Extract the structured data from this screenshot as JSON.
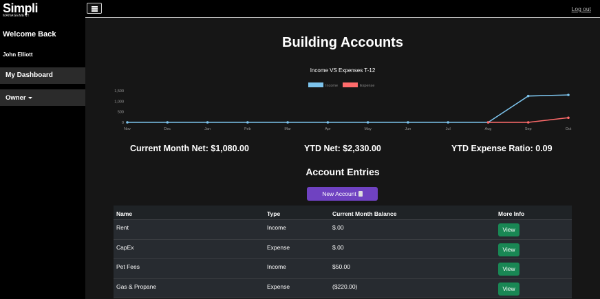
{
  "app": {
    "logo_text": "Simpli",
    "logo_sub": "MANAGEMENT"
  },
  "sidebar": {
    "welcome": "Welcome Back",
    "user_name": "John Elliott",
    "items": [
      {
        "label": "My Dashboard"
      },
      {
        "label": "Owner"
      }
    ]
  },
  "topbar": {
    "logout_label": "Log out",
    "menu_icon": "hamburger-icon"
  },
  "page": {
    "title": "Building Accounts"
  },
  "chart_data": {
    "type": "line",
    "title": "Income VS Expenses T-12",
    "categories": [
      "Nov",
      "Dec",
      "Jan",
      "Feb",
      "Mar",
      "Apr",
      "May",
      "Jun",
      "Jul",
      "Aug",
      "Sep",
      "Oct"
    ],
    "series": [
      {
        "name": "Income",
        "color": "#7cc3ec",
        "values": [
          0,
          0,
          0,
          0,
          0,
          0,
          0,
          0,
          0,
          0,
          1250,
          1300
        ]
      },
      {
        "name": "Expense",
        "color": "#ff6b6b",
        "values": [
          null,
          null,
          null,
          null,
          null,
          null,
          null,
          null,
          null,
          0,
          0,
          220
        ]
      }
    ],
    "yticks": [
      "1,500",
      "1,000",
      "500",
      "0"
    ],
    "ylim": [
      0,
      1500
    ],
    "legend_position": "top-center",
    "grid": false
  },
  "stats": {
    "current_month_net": "Current Month Net: $1,080.00",
    "ytd_net": "YTD Net: $2,330.00",
    "ytd_expense_ratio": "YTD Expense Ratio: 0.09"
  },
  "entries": {
    "title": "Account Entries",
    "new_button_label": "New Account",
    "columns": [
      "Name",
      "Type",
      "Current Month Balance",
      "More Info"
    ],
    "view_label": "View",
    "rows": [
      {
        "name": "Rent",
        "type": "Income",
        "balance": "$.00"
      },
      {
        "name": "CapEx",
        "type": "Expense",
        "balance": "$.00"
      },
      {
        "name": "Pet Fees",
        "type": "Income",
        "balance": "$50.00"
      },
      {
        "name": "Gas & Propane",
        "type": "Expense",
        "balance": "($220.00)"
      }
    ]
  }
}
